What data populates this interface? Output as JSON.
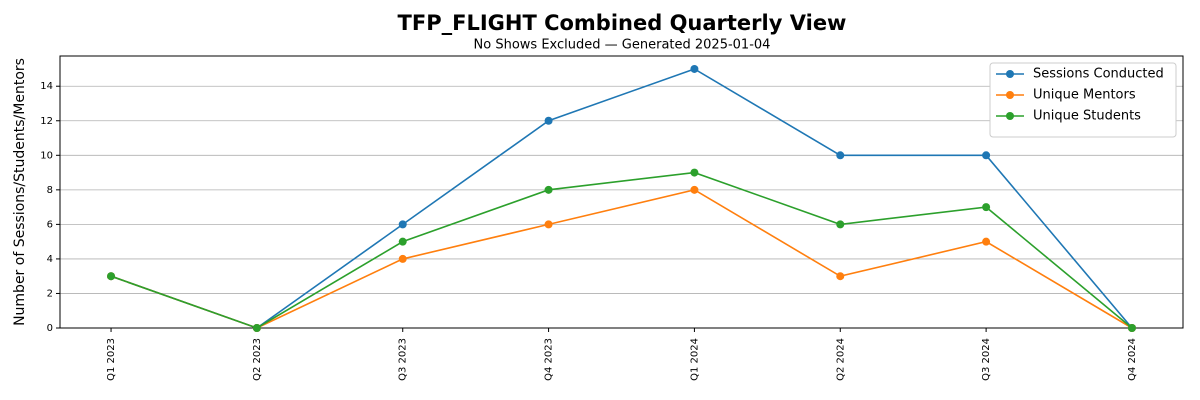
{
  "chart_data": {
    "type": "line",
    "title": "TFP_FLIGHT Combined Quarterly View",
    "subtitle": "No Shows Excluded — Generated 2025-01-04",
    "y_label": "Number of Sessions/Students/Mentors",
    "categories": [
      "Q1 2023",
      "Q2 2023",
      "Q3 2023",
      "Q4 2023",
      "Q1 2024",
      "Q2 2024",
      "Q3 2024",
      "Q4 2024"
    ],
    "series": [
      {
        "name": "Sessions Conducted",
        "color": "#1f77b4",
        "values": [
          3,
          0,
          6,
          12,
          15,
          10,
          10,
          0
        ]
      },
      {
        "name": "Unique Mentors",
        "color": "#ff7f0e",
        "values": [
          3,
          0,
          4,
          6,
          8,
          3,
          5,
          0
        ]
      },
      {
        "name": "Unique Students",
        "color": "#2ca02c",
        "values": [
          3,
          0,
          5,
          8,
          9,
          6,
          7,
          0
        ]
      }
    ],
    "ylim": [
      0,
      15.75
    ],
    "yticks": [
      0,
      2,
      4,
      6,
      8,
      10,
      12,
      14
    ],
    "grid": true,
    "legend": "upper-right"
  }
}
